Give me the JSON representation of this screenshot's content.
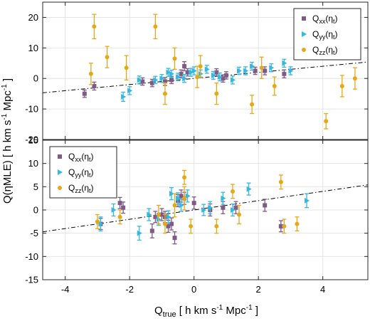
{
  "chart_data": {
    "type": "scatter",
    "xlabel": {
      "base": "Q",
      "sub": "true",
      "units": "[ h km s",
      "units_sup": "-1",
      "units_tail": " Mpc",
      "units_sup2": "-1",
      "units_end": " ]"
    },
    "ylabel": {
      "text": "Q(ηMLE)  [ h km s",
      "sup": "-1",
      "tail": " Mpc",
      "sup2": "-1",
      "end": " ]"
    },
    "xlim": [
      -4.7,
      5.4
    ],
    "xticks": [
      -4,
      -2,
      0,
      2,
      4
    ],
    "colors": {
      "xx": "#7e5a84",
      "yy": "#35b7e0",
      "zz": "#e5a818",
      "fit": "#000000"
    },
    "panels": [
      {
        "ylim": [
          -20,
          25
        ],
        "yticks": [
          -20,
          -10,
          0,
          10,
          20
        ],
        "fit_line": {
          "slope": 1.0,
          "intercept": 0.0
        },
        "legend": {
          "position": "top-right",
          "entries": [
            {
              "series": "xx",
              "label": "Q",
              "sub": "xx",
              "tail": "(η",
              "tsub": "t",
              "end": ")",
              "marker": "square"
            },
            {
              "series": "yy",
              "label": "Q",
              "sub": "yy",
              "tail": "(η",
              "tsub": "t",
              "end": ")",
              "marker": "triangle"
            },
            {
              "series": "zz",
              "label": "Q",
              "sub": "zz",
              "tail": "(η",
              "tsub": "t",
              "end": ")",
              "marker": "circle"
            }
          ]
        },
        "series": [
          {
            "key": "xx",
            "marker": "square",
            "points": [
              [
                -3.4,
                -5.0,
                1.2
              ],
              [
                -3.1,
                -2.5,
                1.3
              ],
              [
                -1.6,
                -1.0,
                1.2
              ],
              [
                -1.3,
                -1.5,
                1.2
              ],
              [
                -0.9,
                -1.0,
                1.3
              ],
              [
                -0.7,
                -0.5,
                1.2
              ],
              [
                -0.4,
                1.5,
                1.3
              ],
              [
                -0.3,
                4.0,
                1.5
              ],
              [
                -0.2,
                2.0,
                1.2
              ],
              [
                0.7,
                2.0,
                1.2
              ],
              [
                0.9,
                0.0,
                1.2
              ],
              [
                1.0,
                1.0,
                1.2
              ],
              [
                1.9,
                2.5,
                1.2
              ],
              [
                2.2,
                2.5,
                1.3
              ],
              [
                2.8,
                1.5,
                1.3
              ]
            ]
          },
          {
            "key": "yy",
            "marker": "triangle",
            "points": [
              [
                -2.2,
                -6.0,
                1.5
              ],
              [
                -2.0,
                -4.0,
                1.3
              ],
              [
                -1.7,
                -0.5,
                1.3
              ],
              [
                -1.2,
                -0.5,
                1.2
              ],
              [
                -1.0,
                0.0,
                1.3
              ],
              [
                -0.7,
                1.5,
                1.2
              ],
              [
                -0.5,
                0.5,
                1.2
              ],
              [
                -0.3,
                0.0,
                1.3
              ],
              [
                -0.1,
                2.0,
                1.3
              ],
              [
                0.2,
                1.5,
                1.3
              ],
              [
                0.4,
                3.0,
                1.3
              ],
              [
                0.6,
                1.0,
                1.3
              ],
              [
                0.8,
                0.5,
                1.3
              ],
              [
                1.2,
                -0.5,
                1.3
              ],
              [
                1.4,
                2.5,
                1.2
              ],
              [
                1.6,
                2.5,
                1.3
              ],
              [
                1.8,
                4.0,
                1.3
              ],
              [
                2.4,
                3.5,
                1.3
              ],
              [
                2.8,
                5.0,
                1.3
              ],
              [
                3.0,
                2.5,
                1.3
              ],
              [
                0.0,
                2.5,
                1.3
              ],
              [
                -0.8,
                2.0,
                1.3
              ]
            ]
          },
          {
            "key": "zz",
            "marker": "circle",
            "points": [
              [
                -3.2,
                1.5,
                3.5
              ],
              [
                -3.1,
                17.0,
                4.0
              ],
              [
                -2.7,
                7.0,
                3.5
              ],
              [
                -2.1,
                3.5,
                4.0
              ],
              [
                -1.2,
                17.0,
                4.0
              ],
              [
                -0.9,
                -5.0,
                3.5
              ],
              [
                -0.6,
                6.5,
                3.5
              ],
              [
                0.1,
                0.5,
                3.5
              ],
              [
                0.2,
                4.0,
                3.5
              ],
              [
                0.7,
                -5.0,
                3.5
              ],
              [
                1.8,
                -8.5,
                3.0
              ],
              [
                2.1,
                3.5,
                3.5
              ],
              [
                2.5,
                -2.5,
                3.0
              ],
              [
                4.1,
                -14.0,
                2.5
              ],
              [
                4.6,
                -2.5,
                3.5
              ],
              [
                5.0,
                0.0,
                3.5
              ]
            ]
          }
        ]
      },
      {
        "ylim": [
          -15,
          15
        ],
        "yticks": [
          -15,
          -10,
          -5,
          0,
          5,
          10,
          15
        ],
        "fit_line": {
          "slope": 1.0,
          "intercept": 0.0
        },
        "legend": {
          "position": "top-left",
          "entries": [
            {
              "series": "xx",
              "label": "Q",
              "sub": "xx",
              "tail": "(η",
              "tsub": "t",
              "end": ")",
              "marker": "square"
            },
            {
              "series": "yy",
              "label": "Q",
              "sub": "yy",
              "tail": "(η",
              "tsub": "t",
              "end": ")",
              "marker": "triangle"
            },
            {
              "series": "zz",
              "label": "Q",
              "sub": "zz",
              "tail": "(η",
              "tsub": "t",
              "end": ")",
              "marker": "circle"
            }
          ]
        },
        "series": [
          {
            "key": "xx",
            "marker": "square",
            "points": [
              [
                -2.3,
                1.5,
                1.2
              ],
              [
                -2.2,
                0.5,
                1.2
              ],
              [
                -1.3,
                -4.5,
                1.5
              ],
              [
                -1.2,
                -1.5,
                1.2
              ],
              [
                -1.0,
                -1.0,
                1.3
              ],
              [
                -0.9,
                -1.5,
                1.2
              ],
              [
                -0.8,
                -3.5,
                1.3
              ],
              [
                -0.7,
                -3.0,
                1.3
              ],
              [
                -0.6,
                -6.0,
                1.3
              ],
              [
                -0.5,
                2.0,
                1.3
              ],
              [
                -0.4,
                3.0,
                1.3
              ],
              [
                -0.3,
                2.5,
                1.3
              ],
              [
                0.0,
                1.5,
                1.3
              ],
              [
                0.5,
                0.0,
                1.3
              ],
              [
                0.9,
                0.5,
                1.3
              ],
              [
                1.3,
                0.5,
                1.3
              ],
              [
                2.2,
                1.0,
                1.3
              ],
              [
                2.7,
                -3.5,
                1.2
              ],
              [
                -2.9,
                -3.0,
                1.2
              ]
            ]
          },
          {
            "key": "yy",
            "marker": "triangle",
            "points": [
              [
                -2.9,
                -3.0,
                1.5
              ],
              [
                -2.5,
                0.0,
                1.3
              ],
              [
                -1.7,
                -5.0,
                1.5
              ],
              [
                -1.4,
                -1.0,
                1.3
              ],
              [
                -1.1,
                -2.0,
                1.3
              ],
              [
                -0.7,
                3.5,
                1.3
              ],
              [
                -0.5,
                2.5,
                1.2
              ],
              [
                -0.4,
                1.0,
                1.3
              ],
              [
                -0.2,
                3.0,
                1.3
              ],
              [
                0.3,
                0.0,
                1.2
              ],
              [
                0.5,
                0.5,
                1.3
              ],
              [
                0.9,
                2.5,
                1.3
              ],
              [
                1.2,
                0.0,
                1.3
              ],
              [
                1.7,
                4.5,
                1.3
              ],
              [
                3.5,
                2.0,
                1.5
              ],
              [
                -0.8,
                -1.5,
                1.3
              ]
            ]
          },
          {
            "key": "zz",
            "marker": "circle",
            "points": [
              [
                -3.0,
                -2.5,
                1.5
              ],
              [
                -1.1,
                -1.0,
                2.0
              ],
              [
                -0.9,
                -3.0,
                2.0
              ],
              [
                -0.6,
                1.0,
                2.5
              ],
              [
                -0.3,
                2.5,
                2.5
              ],
              [
                -0.3,
                7.0,
                1.5
              ],
              [
                -0.1,
                -3.5,
                1.5
              ],
              [
                0.7,
                -3.5,
                1.5
              ],
              [
                1.2,
                4.0,
                1.5
              ],
              [
                1.4,
                -1.0,
                2.0
              ],
              [
                2.7,
                6.0,
                1.5
              ],
              [
                2.8,
                -3.5,
                1.5
              ],
              [
                3.2,
                -3.0,
                1.5
              ],
              [
                -2.3,
                -1.5,
                1.5
              ]
            ]
          }
        ]
      }
    ]
  }
}
